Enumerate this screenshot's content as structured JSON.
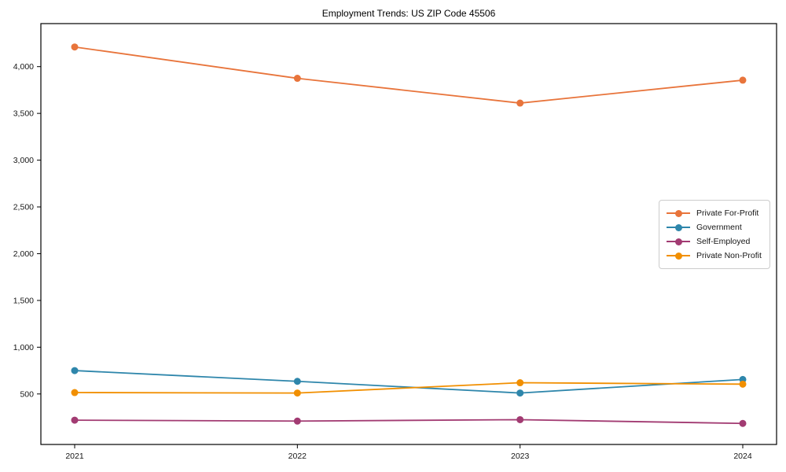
{
  "chart_data": {
    "type": "line",
    "title": "Employment Trends: US ZIP Code 45506",
    "categories": [
      "2021",
      "2022",
      "2023",
      "2024"
    ],
    "series": [
      {
        "name": "Private For-Profit",
        "color": "#E8743B",
        "values": [
          4210,
          3875,
          3610,
          3855
        ]
      },
      {
        "name": "Government",
        "color": "#2E86AB",
        "values": [
          750,
          635,
          510,
          655
        ]
      },
      {
        "name": "Self-Employed",
        "color": "#A23B72",
        "values": [
          220,
          210,
          225,
          185
        ]
      },
      {
        "name": "Private Non-Profit",
        "color": "#F18F01",
        "values": [
          515,
          510,
          620,
          605
        ]
      }
    ],
    "xlabel": "",
    "ylabel": "",
    "yticks": [
      500,
      1000,
      1500,
      2000,
      2500,
      3000,
      3500,
      4000
    ],
    "ylim": [
      -40,
      4460
    ],
    "grid": false,
    "legend_position": "center-right",
    "axis_color": "#000000",
    "background": "#ffffff"
  }
}
